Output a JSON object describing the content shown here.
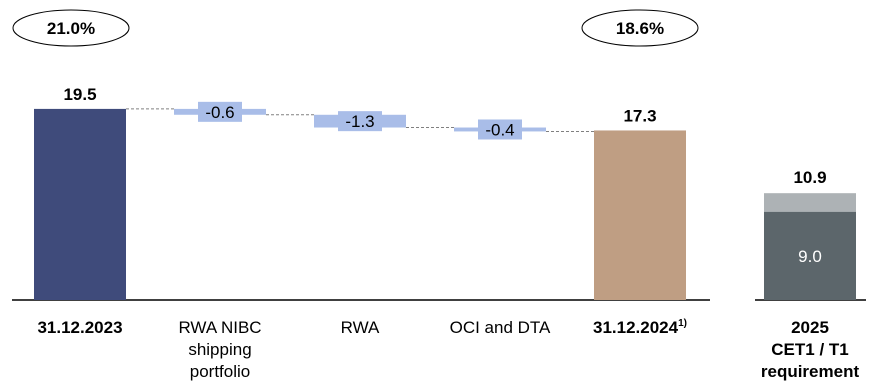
{
  "chart_data": {
    "type": "bar",
    "subtype": "waterfall",
    "ylim": [
      0,
      20.5
    ],
    "ratios": [
      {
        "label": "21.0%",
        "category": "31.12.2023"
      },
      {
        "label": "18.6%",
        "category": "31.12.2024"
      }
    ],
    "steps": [
      {
        "category_lines": [
          "31.12.2023"
        ],
        "bold": true,
        "kind": "total",
        "value": 19.5,
        "label": "19.5",
        "color": "#3f4b7b"
      },
      {
        "category_lines": [
          "RWA NIBC",
          "shipping",
          "portfolio"
        ],
        "bold": false,
        "kind": "delta",
        "value": -0.6,
        "label": "-0.6",
        "color": "#a9bde8"
      },
      {
        "category_lines": [
          "RWA"
        ],
        "bold": false,
        "kind": "delta",
        "value": -1.3,
        "label": "-1.3",
        "color": "#a9bde8"
      },
      {
        "category_lines": [
          "OCI and DTA"
        ],
        "bold": false,
        "kind": "delta",
        "value": -0.4,
        "label": "-0.4",
        "color": "#a9bde8"
      },
      {
        "category_lines": [
          "31.12.2024"
        ],
        "footnote": "1)",
        "bold": true,
        "kind": "total",
        "value": 17.3,
        "label": "17.3",
        "color": "#bf9e83"
      }
    ],
    "requirement": {
      "category_lines": [
        "2025",
        "CET1 / T1",
        "requirement"
      ],
      "total": 10.9,
      "total_label": "10.9",
      "base": 9.0,
      "base_label": "9.0",
      "base_color": "#5c666b",
      "top_color": "#adb2b5"
    }
  }
}
